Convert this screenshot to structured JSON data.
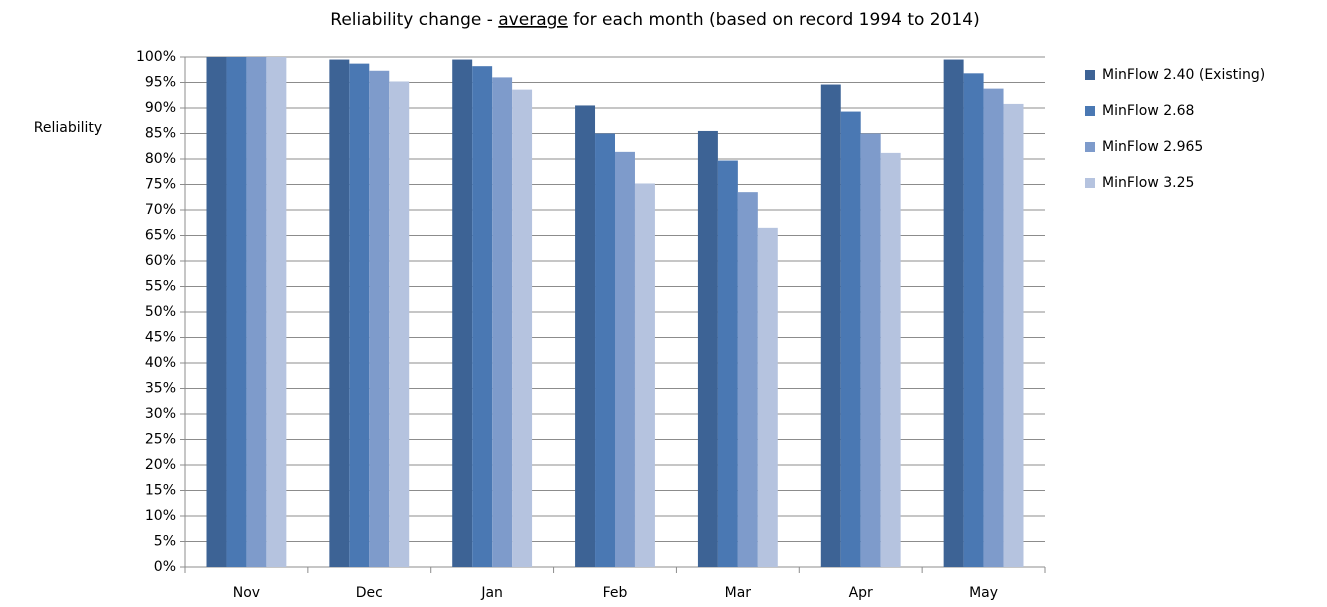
{
  "chart_data": {
    "type": "bar",
    "title": [
      "Reliability change -",
      "average",
      "for each month (based on record 1994 to 2014)"
    ],
    "y_label": "Reliability",
    "categories": [
      "Nov",
      "Dec",
      "Jan",
      "Feb",
      "Mar",
      "Apr",
      "May"
    ],
    "series": [
      {
        "name": "MinFlow 2.40 (Existing)",
        "color": "#3d6395",
        "values": [
          100,
          99.5,
          99.5,
          90.5,
          85.5,
          94.6,
          99.5
        ]
      },
      {
        "name": "MinFlow 2.68",
        "color": "#4a78b3",
        "values": [
          100,
          98.7,
          98.2,
          85,
          79.7,
          89.3,
          96.8
        ]
      },
      {
        "name": "MinFlow 2.965",
        "color": "#7e9bcb",
        "values": [
          100,
          97.3,
          96,
          81.4,
          73.5,
          85,
          93.8
        ]
      },
      {
        "name": "MinFlow 3.25",
        "color": "#b5c3df",
        "values": [
          100,
          95.2,
          93.6,
          75.2,
          66.5,
          81.2,
          90.8
        ]
      }
    ],
    "ylim": [
      0,
      100
    ],
    "yticks": [
      {
        "value": 0,
        "label": "0%"
      },
      {
        "value": 5,
        "label": "5%"
      },
      {
        "value": 10,
        "label": "10%"
      },
      {
        "value": 15,
        "label": "15%"
      },
      {
        "value": 20,
        "label": "20%"
      },
      {
        "value": 25,
        "label": "25%"
      },
      {
        "value": 30,
        "label": "30%"
      },
      {
        "value": 35,
        "label": "35%"
      },
      {
        "value": 40,
        "label": "40%"
      },
      {
        "value": 45,
        "label": "45%"
      },
      {
        "value": 50,
        "label": "50%"
      },
      {
        "value": 55,
        "label": "55%"
      },
      {
        "value": 60,
        "label": "60%"
      },
      {
        "value": 65,
        "label": "65%"
      },
      {
        "value": 70,
        "label": "70%"
      },
      {
        "value": 75,
        "label": "75%"
      },
      {
        "value": 80,
        "label": "80%"
      },
      {
        "value": 85,
        "label": "85%"
      },
      {
        "value": 90,
        "label": "90%"
      },
      {
        "value": 95,
        "label": "95%"
      },
      {
        "value": 100,
        "label": "100%"
      }
    ],
    "grid": true,
    "legend": "right"
  }
}
